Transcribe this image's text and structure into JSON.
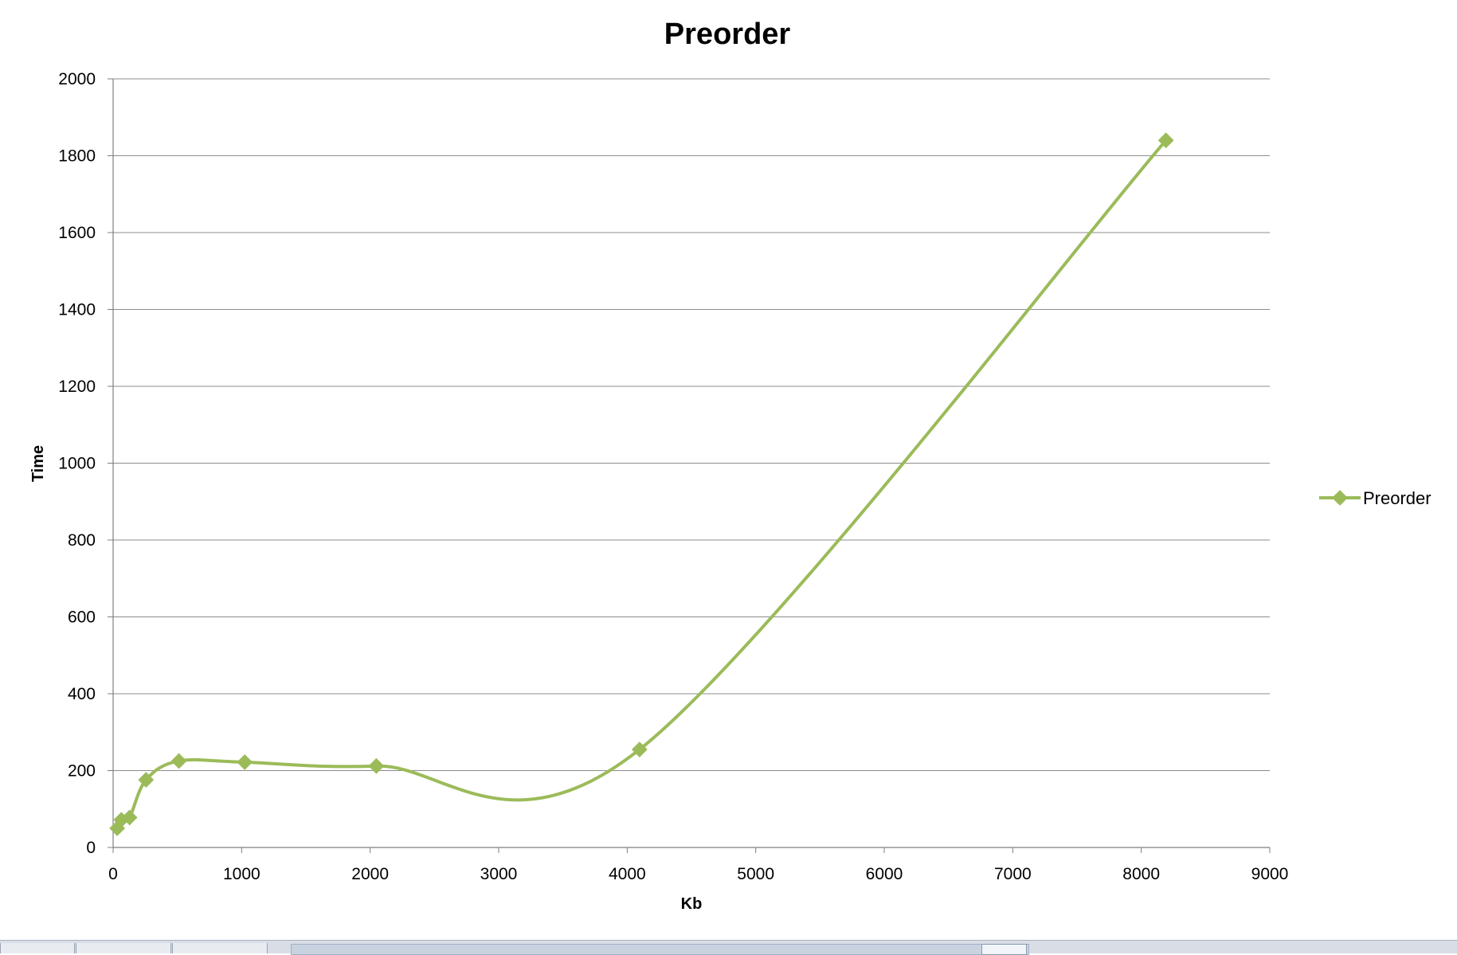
{
  "chart_data": {
    "type": "line",
    "title": "Preorder",
    "xlabel": "Kb",
    "ylabel": "Time",
    "xlim": [
      0,
      9000
    ],
    "ylim": [
      0,
      2000
    ],
    "x_ticks": [
      "0",
      "1000",
      "2000",
      "3000",
      "4000",
      "5000",
      "6000",
      "7000",
      "8000",
      "9000"
    ],
    "y_ticks": [
      "0",
      "200",
      "400",
      "600",
      "800",
      "1000",
      "1200",
      "1400",
      "1600",
      "1800",
      "2000"
    ],
    "grid": "horizontal",
    "legend": "right",
    "series": [
      {
        "name": "Preorder",
        "color": "#9BBB59",
        "marker": "diamond",
        "smooth": true,
        "x": [
          32,
          64,
          128,
          256,
          512,
          1024,
          2048,
          4096,
          8192
        ],
        "y": [
          50,
          72,
          78,
          176,
          225,
          222,
          212,
          255,
          1840
        ]
      }
    ]
  }
}
